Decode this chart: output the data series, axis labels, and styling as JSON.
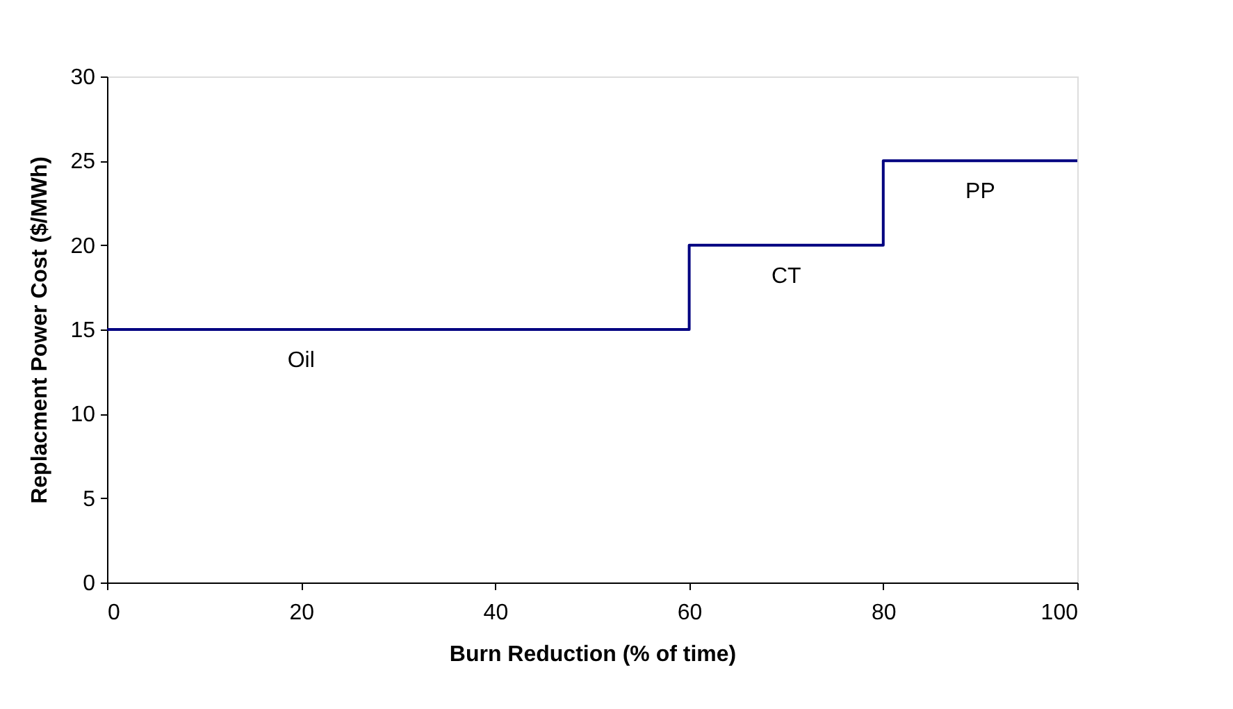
{
  "chart_data": {
    "type": "step",
    "xlabel": "Burn Reduction (% of time)",
    "ylabel": "Replacment Power Cost ($/MWh)",
    "x": [
      0,
      60,
      80,
      100
    ],
    "series": [
      {
        "color": "#000080",
        "values": [
          15,
          20,
          25,
          25
        ]
      }
    ],
    "xlim": [
      0,
      100
    ],
    "xticks": [
      0,
      20,
      40,
      60,
      80,
      100
    ],
    "ylim": [
      0,
      30
    ],
    "yticks": [
      0,
      5,
      10,
      15,
      20,
      25,
      30
    ],
    "grid": false,
    "marker": "none",
    "line_style": "solid",
    "annotations": [
      {
        "text": "Oil",
        "x": 20,
        "y": 15
      },
      {
        "text": "CT",
        "x": 70,
        "y": 20
      },
      {
        "text": "PP",
        "x": 90,
        "y": 25
      }
    ]
  }
}
